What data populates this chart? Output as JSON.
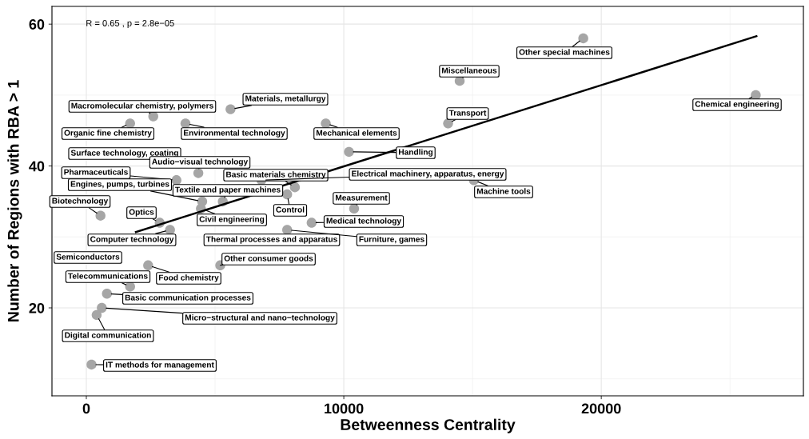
{
  "chart_data": {
    "type": "scatter",
    "xlabel": "Betweenness Centrality",
    "ylabel": "Number of Regions with RBA > 1",
    "xlim": [
      -1335,
      27850
    ],
    "ylim": [
      7.6,
      62.5
    ],
    "xticks": [
      0,
      10000,
      20000
    ],
    "yticks": [
      20,
      40,
      60
    ],
    "grid": true,
    "annotations": [
      "R = 0.65 , p = 2.8e−05"
    ],
    "series": [
      {
        "color": "#a6a6a6",
        "x": [
          19300,
          14500,
          26000,
          14050,
          9300,
          5600,
          2600,
          1700,
          3850,
          10200,
          null,
          4350,
          3500,
          8100,
          6800,
          15050,
          550,
          4500,
          5300,
          10400,
          7800,
          2850,
          4450,
          8750,
          3250,
          null,
          7800,
          null,
          5200,
          1700,
          2400,
          800,
          600,
          400,
          200
        ],
        "values": [
          58,
          52,
          50,
          46,
          46,
          48,
          47,
          46,
          46,
          42,
          null,
          39,
          38,
          37,
          38,
          38,
          33,
          35,
          35,
          34,
          36,
          32,
          34,
          32,
          31,
          null,
          31,
          null,
          26,
          23,
          26,
          22,
          20,
          19,
          12
        ],
        "value_labels": [
          "Other special machines",
          "Miscellaneous",
          "Chemical engineering",
          "Transport",
          "Mechanical elements",
          "Materials, metallurgy",
          "Macromolecular chemistry, polymers",
          "Organic fine chemistry",
          "Environmental technology",
          "Handling",
          "Surface technology, coating",
          "Audio−visual technology",
          "Pharmaceuticals",
          "Basic materials chemistry",
          "Electrical machinery, apparatus, energy",
          "Machine tools",
          "Biotechnology",
          "Engines, pumps, turbines",
          "Textile and paper machines",
          "Measurement",
          "Control",
          "Optics",
          "Civil engineering",
          "Medical technology",
          "Computer technology",
          "Thermal processes and apparatus",
          "Furniture, games",
          "Semiconductors",
          "Other consumer goods",
          "Telecommunications",
          "Food chemistry",
          "Basic communication processes",
          "Micro−structural and nano−technology",
          "Digital communication",
          "IT methods for management"
        ]
      },
      {
        "type": "line",
        "color": "#000000",
        "x": [
          1925,
          26025
        ],
        "values": [
          30.7,
          58.3
        ]
      }
    ]
  }
}
